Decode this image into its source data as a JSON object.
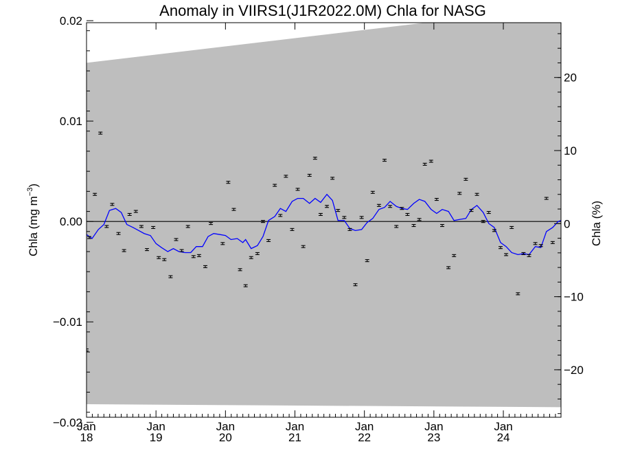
{
  "chart_data": {
    "type": "scatter",
    "title": "Anomaly in VIIRS1(J1R2022.0M) Chla for NASG",
    "ylabel": {
      "base": "Chla (mg m",
      "sup": "−3",
      "close": ")"
    },
    "y2label": "Chla (%)",
    "xlim": [
      2018.0,
      2024.83
    ],
    "ylim": [
      -0.0195,
      0.0198
    ],
    "y2lim": [
      -26.5,
      27.5
    ],
    "colors": {
      "band": "#bebebe",
      "line": "#0000ff",
      "points": "#000000",
      "zero": "#000000"
    },
    "yticks": [
      {
        "value": 0.02,
        "label": "0.02"
      },
      {
        "value": 0.01,
        "label": "0.01"
      },
      {
        "value": 0.0,
        "label": "0.00"
      },
      {
        "value": -0.01,
        "label": "−0.01"
      },
      {
        "value": -0.02,
        "label": "−0.02"
      }
    ],
    "y2ticks": [
      {
        "value": 20,
        "label": "20"
      },
      {
        "value": 10,
        "label": "10"
      },
      {
        "value": 0,
        "label": "0"
      },
      {
        "value": -10,
        "label": "−10"
      },
      {
        "value": -20,
        "label": "−20"
      }
    ],
    "xticks": [
      {
        "value": 2018.0,
        "month": "Jan",
        "year": "18"
      },
      {
        "value": 2019.0,
        "month": "Jan",
        "year": "19"
      },
      {
        "value": 2020.0,
        "month": "Jan",
        "year": "20"
      },
      {
        "value": 2021.0,
        "month": "Jan",
        "year": "21"
      },
      {
        "value": 2022.0,
        "month": "Jan",
        "year": "22"
      },
      {
        "value": 2023.0,
        "month": "Jan",
        "year": "23"
      },
      {
        "value": 2024.0,
        "month": "Jan",
        "year": "24"
      }
    ],
    "band": {
      "upper": [
        [
          2018.0,
          0.0158
        ],
        [
          2024.83,
          0.0214
        ]
      ],
      "lower": [
        [
          2018.0,
          -0.0182
        ],
        [
          2024.83,
          -0.0185
        ]
      ]
    },
    "points": [
      [
        2018.0,
        -0.0128
      ],
      [
        2018.04,
        -0.0016
      ],
      [
        2018.12,
        0.0027
      ],
      [
        2018.2,
        0.0088
      ],
      [
        2018.29,
        -0.0005
      ],
      [
        2018.37,
        0.0017
      ],
      [
        2018.46,
        -0.0012
      ],
      [
        2018.54,
        -0.0029
      ],
      [
        2018.62,
        0.0007
      ],
      [
        2018.71,
        0.001
      ],
      [
        2018.79,
        -0.0005
      ],
      [
        2018.87,
        -0.0028
      ],
      [
        2018.96,
        -0.0006
      ],
      [
        2019.04,
        -0.0036
      ],
      [
        2019.12,
        -0.0038
      ],
      [
        2019.21,
        -0.0055
      ],
      [
        2019.29,
        -0.0018
      ],
      [
        2019.37,
        -0.0029
      ],
      [
        2019.46,
        -0.0005
      ],
      [
        2019.54,
        -0.0035
      ],
      [
        2019.62,
        -0.0034
      ],
      [
        2019.71,
        -0.0045
      ],
      [
        2019.79,
        -0.0002
      ],
      [
        2019.96,
        -0.0022
      ],
      [
        2020.04,
        0.0039
      ],
      [
        2020.12,
        0.0012
      ],
      [
        2020.21,
        -0.0048
      ],
      [
        2020.29,
        -0.0064
      ],
      [
        2020.37,
        -0.0036
      ],
      [
        2020.46,
        -0.0032
      ],
      [
        2020.54,
        0.0
      ],
      [
        2020.62,
        -0.0019
      ],
      [
        2020.71,
        0.0036
      ],
      [
        2020.79,
        0.0006
      ],
      [
        2020.87,
        0.0045
      ],
      [
        2020.96,
        -0.0008
      ],
      [
        2021.04,
        0.0032
      ],
      [
        2021.12,
        -0.0025
      ],
      [
        2021.21,
        0.0046
      ],
      [
        2021.29,
        0.0063
      ],
      [
        2021.37,
        0.0007
      ],
      [
        2021.46,
        0.0015
      ],
      [
        2021.54,
        0.0043
      ],
      [
        2021.62,
        0.0011
      ],
      [
        2021.71,
        0.0004
      ],
      [
        2021.79,
        -0.0008
      ],
      [
        2021.87,
        -0.0063
      ],
      [
        2021.96,
        0.0004
      ],
      [
        2022.04,
        -0.0039
      ],
      [
        2022.12,
        0.0029
      ],
      [
        2022.21,
        0.0016
      ],
      [
        2022.29,
        0.0061
      ],
      [
        2022.37,
        0.0015
      ],
      [
        2022.46,
        -0.0005
      ],
      [
        2022.54,
        0.0013
      ],
      [
        2022.62,
        0.0007
      ],
      [
        2022.71,
        -0.0004
      ],
      [
        2022.79,
        0.0002
      ],
      [
        2022.87,
        0.0057
      ],
      [
        2022.96,
        0.006
      ],
      [
        2023.04,
        0.0022
      ],
      [
        2023.12,
        -0.0004
      ],
      [
        2023.21,
        -0.0046
      ],
      [
        2023.29,
        -0.0034
      ],
      [
        2023.37,
        0.0028
      ],
      [
        2023.46,
        0.0042
      ],
      [
        2023.54,
        0.0011
      ],
      [
        2023.62,
        0.0027
      ],
      [
        2023.71,
        0.0
      ],
      [
        2023.79,
        0.0009
      ],
      [
        2023.87,
        -0.0009
      ],
      [
        2023.96,
        -0.0026
      ],
      [
        2024.04,
        -0.0033
      ],
      [
        2024.12,
        -0.0006
      ],
      [
        2024.21,
        -0.0072
      ],
      [
        2024.29,
        -0.0032
      ],
      [
        2024.37,
        -0.0034
      ],
      [
        2024.46,
        -0.0022
      ],
      [
        2024.54,
        -0.0024
      ],
      [
        2024.62,
        0.0023
      ],
      [
        2024.71,
        -0.0021
      ]
    ],
    "line": [
      [
        2018.0,
        -0.0013
      ],
      [
        2018.08,
        -0.0017
      ],
      [
        2018.17,
        -0.0008
      ],
      [
        2018.25,
        -0.0003
      ],
      [
        2018.33,
        0.0011
      ],
      [
        2018.42,
        0.0013
      ],
      [
        2018.5,
        0.0009
      ],
      [
        2018.58,
        -0.0003
      ],
      [
        2018.67,
        -0.0006
      ],
      [
        2018.75,
        -0.0009
      ],
      [
        2018.83,
        -0.0012
      ],
      [
        2018.92,
        -0.0014
      ],
      [
        2019.0,
        -0.0022
      ],
      [
        2019.08,
        -0.0026
      ],
      [
        2019.17,
        -0.003
      ],
      [
        2019.25,
        -0.0027
      ],
      [
        2019.33,
        -0.003
      ],
      [
        2019.42,
        -0.0031
      ],
      [
        2019.5,
        -0.0031
      ],
      [
        2019.58,
        -0.0025
      ],
      [
        2019.67,
        -0.0025
      ],
      [
        2019.75,
        -0.0015
      ],
      [
        2019.83,
        -0.0012
      ],
      [
        2019.92,
        -0.0013
      ],
      [
        2020.0,
        -0.0014
      ],
      [
        2020.08,
        -0.0018
      ],
      [
        2020.17,
        -0.0017
      ],
      [
        2020.25,
        -0.0021
      ],
      [
        2020.29,
        -0.0018
      ],
      [
        2020.37,
        -0.0027
      ],
      [
        2020.46,
        -0.0024
      ],
      [
        2020.54,
        -0.0015
      ],
      [
        2020.62,
        0.0001
      ],
      [
        2020.71,
        0.0005
      ],
      [
        2020.79,
        0.0013
      ],
      [
        2020.87,
        0.001
      ],
      [
        2020.96,
        0.002
      ],
      [
        2021.04,
        0.0023
      ],
      [
        2021.12,
        0.0023
      ],
      [
        2021.21,
        0.0018
      ],
      [
        2021.29,
        0.0023
      ],
      [
        2021.37,
        0.0019
      ],
      [
        2021.46,
        0.0027
      ],
      [
        2021.54,
        0.0021
      ],
      [
        2021.62,
        0.0001
      ],
      [
        2021.71,
        0.0001
      ],
      [
        2021.79,
        -0.0007
      ],
      [
        2021.87,
        -0.0009
      ],
      [
        2021.96,
        -0.0008
      ],
      [
        2022.04,
        -0.0001
      ],
      [
        2022.12,
        0.0003
      ],
      [
        2022.21,
        0.0012
      ],
      [
        2022.29,
        0.0014
      ],
      [
        2022.37,
        0.002
      ],
      [
        2022.46,
        0.0015
      ],
      [
        2022.54,
        0.0013
      ],
      [
        2022.62,
        0.0012
      ],
      [
        2022.71,
        0.0018
      ],
      [
        2022.79,
        0.0022
      ],
      [
        2022.87,
        0.002
      ],
      [
        2022.96,
        0.0012
      ],
      [
        2023.04,
        0.0008
      ],
      [
        2023.12,
        0.0012
      ],
      [
        2023.21,
        0.001
      ],
      [
        2023.29,
        0.0001
      ],
      [
        2023.37,
        0.0002
      ],
      [
        2023.46,
        0.0003
      ],
      [
        2023.54,
        0.0012
      ],
      [
        2023.62,
        0.0016
      ],
      [
        2023.71,
        0.0009
      ],
      [
        2023.79,
        -0.0002
      ],
      [
        2023.87,
        -0.0006
      ],
      [
        2023.96,
        -0.0021
      ],
      [
        2024.04,
        -0.0025
      ],
      [
        2024.12,
        -0.0031
      ],
      [
        2024.21,
        -0.0033
      ],
      [
        2024.29,
        -0.0032
      ],
      [
        2024.37,
        -0.0033
      ],
      [
        2024.46,
        -0.0025
      ],
      [
        2024.54,
        -0.0026
      ],
      [
        2024.62,
        -0.001
      ],
      [
        2024.71,
        -0.0006
      ],
      [
        2024.79,
        0.0
      ],
      [
        2024.83,
        0.0001
      ]
    ]
  }
}
